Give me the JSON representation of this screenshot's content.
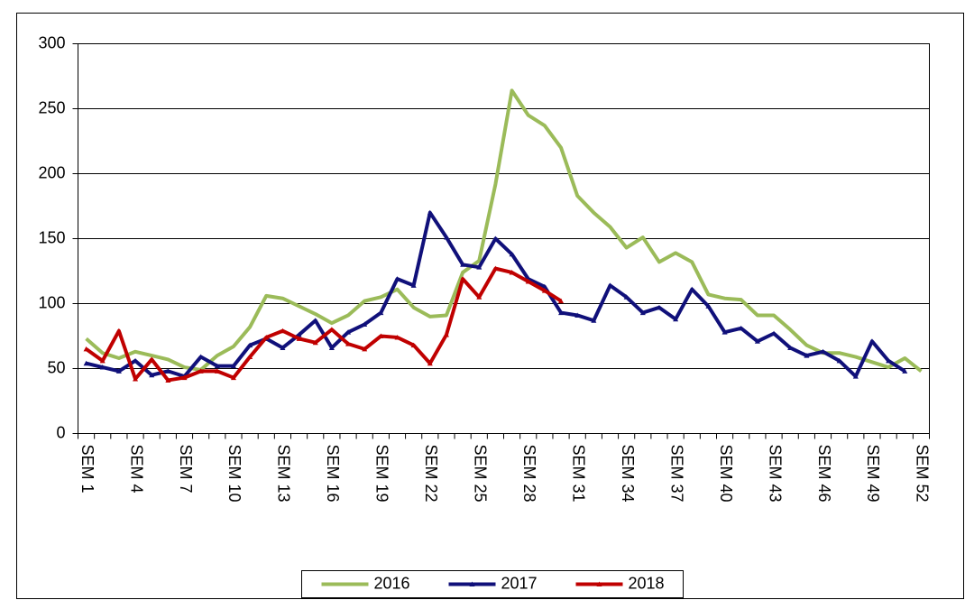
{
  "chart_data": {
    "type": "line",
    "categories": [
      "SEM 1",
      null,
      null,
      "SEM 4",
      null,
      null,
      "SEM 7",
      null,
      null,
      "SEM 10",
      null,
      null,
      "SEM 13",
      null,
      null,
      "SEM 16",
      null,
      null,
      "SEM 19",
      null,
      null,
      "SEM 22",
      null,
      null,
      "SEM 25",
      null,
      null,
      "SEM 28",
      null,
      null,
      "SEM 31",
      null,
      null,
      "SEM 34",
      null,
      null,
      "SEM 37",
      null,
      null,
      "SEM 40",
      null,
      null,
      "SEM 43",
      null,
      null,
      "SEM 46",
      null,
      null,
      "SEM 49",
      null,
      null,
      "SEM 52"
    ],
    "series": [
      {
        "name": "2016",
        "color": "#9bbb59",
        "marker": false,
        "values": [
          73,
          62,
          58,
          63,
          60,
          57,
          51,
          49,
          60,
          67,
          82,
          106,
          104,
          98,
          92,
          85,
          91,
          102,
          105,
          111,
          97,
          90,
          91,
          124,
          133,
          192,
          264,
          245,
          237,
          220,
          183,
          170,
          159,
          143,
          151,
          132,
          139,
          132,
          107,
          104,
          103,
          91,
          91,
          80,
          68,
          62,
          62,
          59,
          55,
          51,
          58,
          48
        ]
      },
      {
        "name": "2017",
        "color": "#10107a",
        "marker": true,
        "values": [
          54,
          51,
          48,
          56,
          45,
          48,
          44,
          59,
          52,
          52,
          68,
          73,
          66,
          76,
          87,
          66,
          78,
          84,
          93,
          119,
          114,
          170,
          151,
          130,
          128,
          150,
          138,
          119,
          113,
          93,
          91,
          87,
          114,
          105,
          93,
          97,
          88,
          111,
          98,
          78,
          81,
          71,
          77,
          66,
          60,
          63,
          56,
          44,
          71,
          56,
          48,
          null
        ]
      },
      {
        "name": "2018",
        "color": "#c00000",
        "marker": true,
        "values": [
          65,
          56,
          79,
          42,
          57,
          41,
          43,
          48,
          48,
          43,
          59,
          74,
          79,
          73,
          70,
          80,
          69,
          65,
          75,
          74,
          68,
          54,
          76,
          119,
          105,
          127,
          124,
          117,
          110,
          102,
          null,
          null,
          null,
          null,
          null,
          null,
          null,
          null,
          null,
          null,
          null,
          null,
          null,
          null,
          null,
          null,
          null,
          null,
          null,
          null,
          null,
          null
        ]
      }
    ],
    "ylim": [
      0,
      300
    ],
    "yticks": [
      0,
      50,
      100,
      150,
      200,
      250,
      300
    ],
    "grid": true,
    "legend": "bottom"
  }
}
